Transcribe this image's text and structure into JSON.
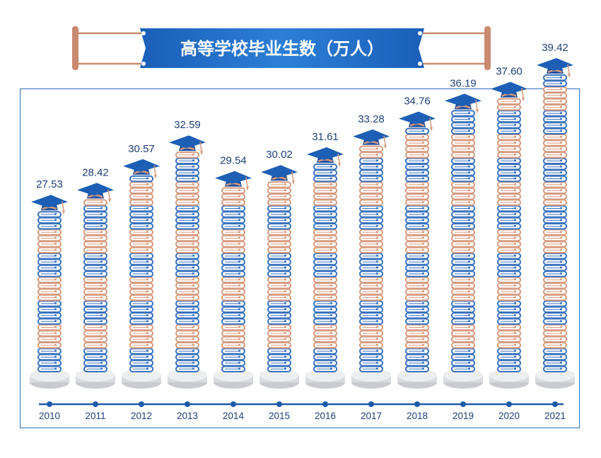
{
  "chart_data": {
    "type": "bar",
    "title": "高等学校毕业生数（万人）",
    "categories": [
      "2010",
      "2011",
      "2012",
      "2013",
      "2014",
      "2015",
      "2016",
      "2017",
      "2018",
      "2019",
      "2020",
      "2021"
    ],
    "values": [
      27.53,
      28.42,
      30.57,
      32.59,
      29.54,
      30.02,
      31.61,
      33.28,
      34.76,
      36.19,
      37.6,
      39.42
    ],
    "value_labels": [
      "27.53",
      "28.42",
      "30.57",
      "32.59",
      "29.54",
      "30.02",
      "31.61",
      "33.28",
      "34.76",
      "36.19",
      "37.60",
      "39.42"
    ],
    "xlabel": "",
    "ylabel": "",
    "grid": false,
    "colors": {
      "blue_book": "#3a72c0",
      "orange_book": "#d79a7e",
      "frame": "#2f6fb8",
      "banner": "#1f6ac2",
      "pole": "#c98a6f",
      "label": "#1f3f7a"
    }
  }
}
